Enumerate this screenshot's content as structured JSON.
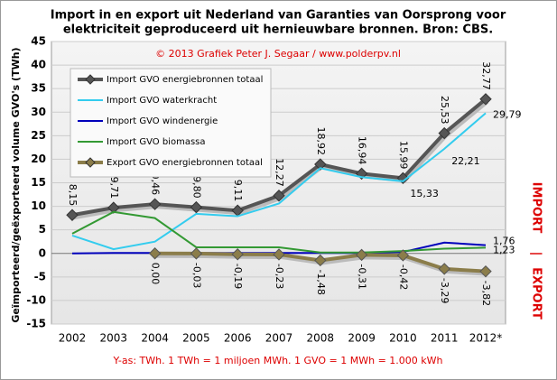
{
  "chart_data": {
    "type": "line",
    "title": [
      "Import in en export uit Nederland van Garanties van Oorsprong voor",
      "elektriciteit geproduceerd uit hernieuwbare bronnen. Bron: CBS."
    ],
    "subtitle": "© 2013 Grafiek Peter J. Segaar / www.polderpv.nl",
    "y_label": "Geïmporteerd/geëxporteerd volume GVO's (TWh)",
    "side_labels": [
      "IMPORT",
      "|",
      "EXPORT"
    ],
    "footnote": "Y-as: TWh. 1 TWh = 1 miljoen MWh. 1 GVO = 1 MWh = 1.000 kWh",
    "categories": [
      "2002",
      "2003",
      "2004",
      "2005",
      "2006",
      "2007",
      "2008",
      "2009",
      "2010",
      "2011",
      "2012*"
    ],
    "ylim": [
      -15,
      45
    ],
    "yticks": [
      45,
      40,
      35,
      30,
      25,
      20,
      15,
      10,
      5,
      0,
      -5,
      -10,
      -15
    ],
    "grid": true,
    "series": [
      {
        "name": "Import GVO energiebronnen totaal",
        "color": "#555555",
        "values": [
          8.15,
          9.71,
          10.46,
          9.8,
          9.11,
          12.27,
          18.92,
          16.94,
          15.99,
          25.53,
          32.77
        ],
        "value_labels": [
          "8,15",
          "9,71",
          "10,46",
          "9,80",
          "9,11",
          "12,27",
          "18,92",
          "16,94",
          "15,99",
          "25,53",
          "32,77"
        ]
      },
      {
        "name": "Import GVO waterkracht",
        "color": "#33ccee",
        "values": [
          3.8,
          0.9,
          2.5,
          8.4,
          7.9,
          10.6,
          18.1,
          16.2,
          15.33,
          22.21,
          29.79
        ],
        "value_labels": [
          null,
          null,
          null,
          null,
          null,
          null,
          null,
          null,
          "15,33",
          "22,21",
          "29,79"
        ]
      },
      {
        "name": "Import GVO windenergie",
        "color": "#0000bb",
        "values": [
          0,
          0.1,
          0.1,
          0.1,
          0.1,
          0.1,
          0.1,
          0.1,
          0.3,
          2.3,
          1.76
        ],
        "value_labels": [
          null,
          null,
          null,
          null,
          null,
          null,
          null,
          null,
          null,
          null,
          "1,76"
        ]
      },
      {
        "name": "Import GVO biomassa",
        "color": "#339933",
        "values": [
          4.2,
          8.8,
          7.5,
          1.3,
          1.3,
          1.3,
          0.2,
          0.2,
          0.5,
          1.0,
          1.23
        ],
        "value_labels": [
          null,
          null,
          null,
          null,
          null,
          null,
          null,
          null,
          null,
          null,
          "1,23"
        ]
      },
      {
        "name": "Export GVO energiebronnen totaal",
        "color": "#8b7d4a",
        "values": [
          null,
          null,
          0.0,
          -0.03,
          -0.19,
          -0.23,
          -1.48,
          -0.31,
          -0.42,
          -3.29,
          -3.82
        ],
        "value_labels": [
          null,
          null,
          "0,00",
          "-0,03",
          "-0,19",
          "-0,23",
          "-1,48",
          "-0,31",
          "-0,42",
          "-3,29",
          "-3,82"
        ]
      }
    ]
  }
}
